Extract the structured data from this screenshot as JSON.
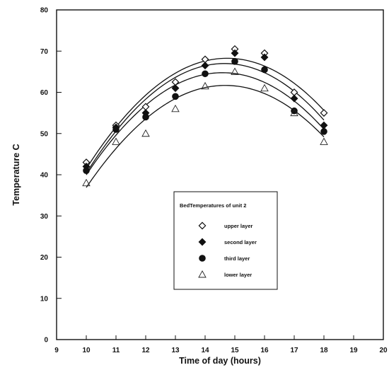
{
  "chart_data": {
    "type": "scatter",
    "title": "",
    "xlabel": "Time of day (hours)",
    "ylabel": "Temperature C",
    "xlim": [
      9,
      20
    ],
    "ylim": [
      0,
      80
    ],
    "x_ticks": [
      "9",
      "10",
      "11",
      "12",
      "13",
      "14",
      "15",
      "16",
      "17",
      "18",
      "19",
      "20"
    ],
    "y_ticks": [
      "0",
      "10",
      "20",
      "30",
      "40",
      "50",
      "60",
      "70",
      "80"
    ],
    "grid": false,
    "legend": {
      "title": "BedTemperatures of unit 2",
      "placement": "center-bottom"
    },
    "series": [
      {
        "name": "upper layer",
        "marker": "open-diamond",
        "x": [
          10,
          11,
          12,
          13,
          14,
          15,
          16,
          17,
          18
        ],
        "y": [
          43,
          52,
          56.5,
          62.5,
          68,
          70.5,
          69.5,
          60,
          55
        ],
        "fit_peak": 69.8
      },
      {
        "name": "second layer",
        "marker": "filled-diamond",
        "x": [
          10,
          11,
          12,
          13,
          14,
          15,
          16,
          17,
          18
        ],
        "y": [
          42,
          51.5,
          55,
          61,
          66.5,
          69.5,
          68.5,
          58.5,
          52
        ],
        "fit_peak": 68.3
      },
      {
        "name": "third layer",
        "marker": "filled-circle",
        "x": [
          10,
          11,
          12,
          13,
          14,
          15,
          16,
          17,
          18
        ],
        "y": [
          41,
          51,
          54,
          59,
          64.5,
          67.5,
          65.5,
          55.5,
          50.5
        ],
        "fit_peak": 65.8
      },
      {
        "name": "lower layer",
        "marker": "open-triangle",
        "x": [
          10,
          11,
          12,
          13,
          14,
          15,
          16,
          17,
          18
        ],
        "y": [
          38,
          48,
          50,
          56,
          61.5,
          65,
          61,
          55,
          48
        ],
        "fit_peak": 62.0
      }
    ]
  }
}
